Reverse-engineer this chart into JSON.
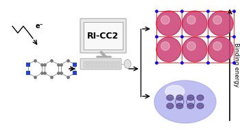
{
  "background_color": "#ffffff",
  "computer_text": "RI-CC2",
  "electron_label": "e⁻",
  "binding_energy_label": "Binding energy",
  "molecule_color_C": "#777777",
  "molecule_color_N": "#2244cc",
  "valence_orbital_color": "#cc4477",
  "diffuse_orbital_color": "#aaaaee",
  "fig_width": 3.5,
  "fig_height": 1.89,
  "dpi": 100
}
